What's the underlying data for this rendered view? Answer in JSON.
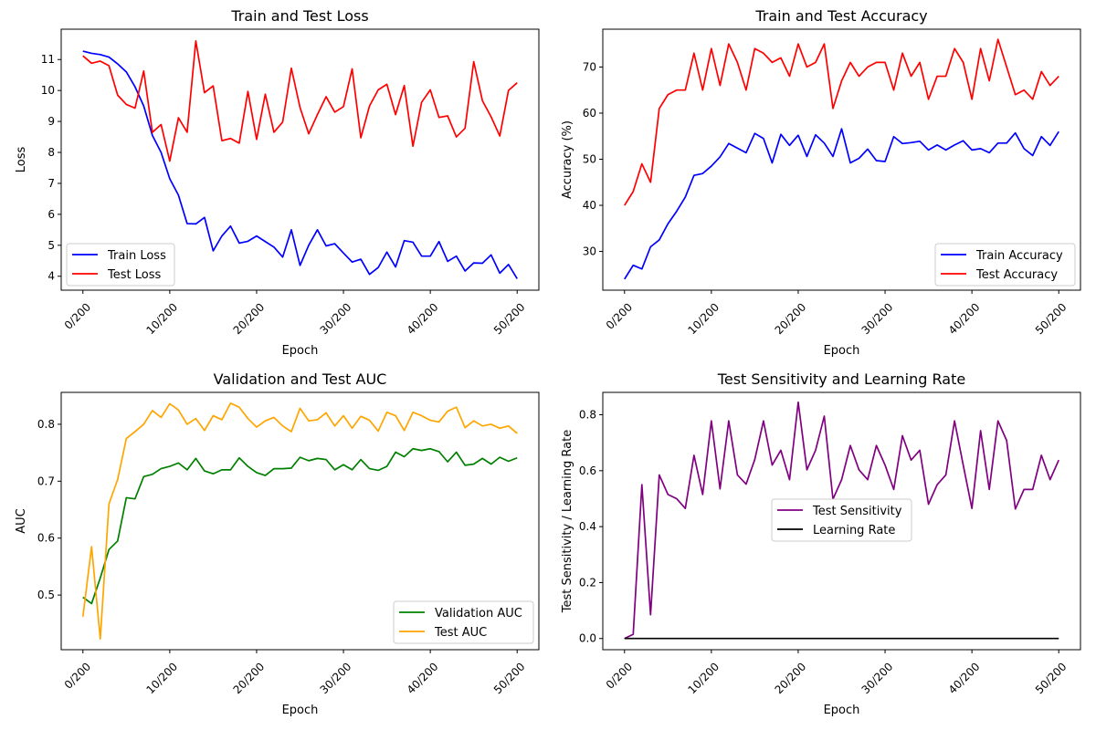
{
  "chart_data": [
    {
      "type": "line",
      "title": "Train and Test Loss",
      "xlabel": "Epoch",
      "ylabel": "Loss",
      "x": [
        0,
        1,
        2,
        3,
        4,
        5,
        6,
        7,
        8,
        9,
        10,
        11,
        12,
        13,
        14,
        15,
        16,
        17,
        18,
        19,
        20,
        21,
        22,
        23,
        24,
        25,
        26,
        27,
        28,
        29,
        30,
        31,
        32,
        33,
        34,
        35,
        36,
        37,
        38,
        39,
        40,
        41,
        42,
        43,
        44,
        45,
        46,
        47,
        48,
        49,
        50
      ],
      "xlim": [
        -2.5,
        52.5
      ],
      "ylim": [
        3.55,
        11.98
      ],
      "xticks": [
        0,
        10,
        20,
        30,
        40,
        50
      ],
      "xtick_labels": [
        "0/200",
        "10/200",
        "20/200",
        "30/200",
        "40/200",
        "50/200"
      ],
      "yticks": [
        4,
        5,
        6,
        7,
        8,
        9,
        10,
        11
      ],
      "ytick_labels": [
        "4",
        "5",
        "6",
        "7",
        "8",
        "9",
        "10",
        "11"
      ],
      "legend": "lower-left",
      "series": [
        {
          "name": "Train Loss",
          "color": "#0000ff",
          "values": [
            11.27,
            11.2,
            11.16,
            11.08,
            10.86,
            10.6,
            10.12,
            9.5,
            8.55,
            8.0,
            7.15,
            6.62,
            5.7,
            5.69,
            5.9,
            4.82,
            5.3,
            5.62,
            5.07,
            5.13,
            5.3,
            5.12,
            4.94,
            4.62,
            5.5,
            4.35,
            5.0,
            5.5,
            4.98,
            5.05,
            4.75,
            4.46,
            4.55,
            4.06,
            4.28,
            4.78,
            4.3,
            5.15,
            5.1,
            4.65,
            4.65,
            5.12,
            4.48,
            4.65,
            4.17,
            4.43,
            4.42,
            4.69,
            4.1,
            4.38,
            3.92
          ]
        },
        {
          "name": "Test Loss",
          "color": "#ff0000",
          "values": [
            11.12,
            10.88,
            10.95,
            10.8,
            9.85,
            9.55,
            9.43,
            10.63,
            8.65,
            8.9,
            7.72,
            9.12,
            8.65,
            11.6,
            9.93,
            10.15,
            8.38,
            8.45,
            8.3,
            9.97,
            8.42,
            9.88,
            8.65,
            8.98,
            10.72,
            9.45,
            8.6,
            9.22,
            9.8,
            9.3,
            9.48,
            10.7,
            8.47,
            9.5,
            10.02,
            10.2,
            9.22,
            10.16,
            8.2,
            9.62,
            10.02,
            9.13,
            9.18,
            8.5,
            8.78,
            10.93,
            9.67,
            9.15,
            8.53,
            10.0,
            10.25
          ]
        }
      ]
    },
    {
      "type": "line",
      "title": "Train and Test Accuracy",
      "xlabel": "Epoch",
      "ylabel": "Accuracy (%)",
      "x": [
        0,
        1,
        2,
        3,
        4,
        5,
        6,
        7,
        8,
        9,
        10,
        11,
        12,
        13,
        14,
        15,
        16,
        17,
        18,
        19,
        20,
        21,
        22,
        23,
        24,
        25,
        26,
        27,
        28,
        29,
        30,
        31,
        32,
        33,
        34,
        35,
        36,
        37,
        38,
        39,
        40,
        41,
        42,
        43,
        44,
        45,
        46,
        47,
        48,
        49,
        50
      ],
      "xlim": [
        -2.5,
        52.5
      ],
      "ylim": [
        21.6,
        78.2
      ],
      "xticks": [
        0,
        10,
        20,
        30,
        40,
        50
      ],
      "xtick_labels": [
        "0/200",
        "10/200",
        "20/200",
        "30/200",
        "40/200",
        "50/200"
      ],
      "yticks": [
        30,
        40,
        50,
        60,
        70
      ],
      "ytick_labels": [
        "30",
        "40",
        "50",
        "60",
        "70"
      ],
      "legend": "lower-right",
      "series": [
        {
          "name": "Train Accuracy",
          "color": "#0000ff",
          "values": [
            24.0,
            27.0,
            26.2,
            31.0,
            32.5,
            36.0,
            38.7,
            41.8,
            46.5,
            46.9,
            48.5,
            50.5,
            53.4,
            52.4,
            51.4,
            55.6,
            54.5,
            49.2,
            55.4,
            53.0,
            55.2,
            50.6,
            55.3,
            53.5,
            50.6,
            56.6,
            49.2,
            50.2,
            52.2,
            49.7,
            49.5,
            54.9,
            53.4,
            53.6,
            53.9,
            52.0,
            53.1,
            52.0,
            53.1,
            54.0,
            52.0,
            52.3,
            51.4,
            53.5,
            53.5,
            55.7,
            52.3,
            50.8,
            54.9,
            53.0,
            56.0
          ]
        },
        {
          "name": "Test Accuracy",
          "color": "#ff0000",
          "values": [
            40.0,
            43.0,
            49.0,
            45.0,
            61.0,
            64.0,
            65.0,
            65.0,
            73.0,
            65.0,
            74.0,
            66.0,
            75.0,
            71.0,
            65.0,
            74.0,
            73.0,
            71.0,
            72.0,
            68.0,
            75.0,
            70.0,
            71.0,
            75.0,
            61.0,
            67.0,
            71.0,
            68.0,
            70.0,
            71.0,
            71.0,
            65.0,
            73.0,
            68.0,
            71.0,
            63.0,
            68.0,
            68.0,
            74.0,
            71.0,
            63.0,
            74.0,
            67.0,
            76.0,
            70.0,
            64.0,
            65.0,
            63.0,
            69.0,
            66.0,
            68.0
          ]
        }
      ]
    },
    {
      "type": "line",
      "title": "Validation and Test AUC",
      "xlabel": "Epoch",
      "ylabel": "AUC",
      "x": [
        0,
        1,
        2,
        3,
        4,
        5,
        6,
        7,
        8,
        9,
        10,
        11,
        12,
        13,
        14,
        15,
        16,
        17,
        18,
        19,
        20,
        21,
        22,
        23,
        24,
        25,
        26,
        27,
        28,
        29,
        30,
        31,
        32,
        33,
        34,
        35,
        36,
        37,
        38,
        39,
        40,
        41,
        42,
        43,
        44,
        45,
        46,
        47,
        48,
        49,
        50
      ],
      "xlim": [
        -2.5,
        52.5
      ],
      "ylim": [
        0.404,
        0.856
      ],
      "xticks": [
        0,
        10,
        20,
        30,
        40,
        50
      ],
      "xtick_labels": [
        "0/200",
        "10/200",
        "20/200",
        "30/200",
        "40/200",
        "50/200"
      ],
      "yticks": [
        0.5,
        0.6,
        0.7,
        0.8
      ],
      "ytick_labels": [
        "0.5",
        "0.6",
        "0.7",
        "0.8"
      ],
      "legend": "lower-right",
      "series": [
        {
          "name": "Validation AUC",
          "color": "#008000",
          "values": [
            0.496,
            0.485,
            0.53,
            0.58,
            0.595,
            0.671,
            0.669,
            0.708,
            0.712,
            0.722,
            0.726,
            0.732,
            0.72,
            0.74,
            0.718,
            0.713,
            0.72,
            0.72,
            0.741,
            0.726,
            0.715,
            0.71,
            0.722,
            0.722,
            0.723,
            0.742,
            0.736,
            0.74,
            0.738,
            0.72,
            0.729,
            0.72,
            0.738,
            0.722,
            0.719,
            0.726,
            0.751,
            0.743,
            0.757,
            0.754,
            0.757,
            0.752,
            0.734,
            0.751,
            0.728,
            0.73,
            0.74,
            0.73,
            0.742,
            0.735,
            0.741
          ]
        },
        {
          "name": "Test AUC",
          "color": "#ffa500",
          "values": [
            0.462,
            0.585,
            0.423,
            0.66,
            0.703,
            0.775,
            0.787,
            0.8,
            0.824,
            0.812,
            0.836,
            0.825,
            0.8,
            0.81,
            0.789,
            0.815,
            0.808,
            0.837,
            0.83,
            0.81,
            0.795,
            0.806,
            0.812,
            0.797,
            0.787,
            0.828,
            0.806,
            0.808,
            0.82,
            0.797,
            0.815,
            0.793,
            0.814,
            0.807,
            0.788,
            0.821,
            0.815,
            0.789,
            0.821,
            0.815,
            0.807,
            0.804,
            0.823,
            0.83,
            0.794,
            0.806,
            0.797,
            0.8,
            0.793,
            0.797,
            0.784
          ]
        }
      ]
    },
    {
      "type": "line",
      "title": "Test Sensitivity and Learning Rate",
      "xlabel": "Epoch",
      "ylabel": "Test Sensitivity / Learning Rate",
      "x": [
        0,
        1,
        2,
        3,
        4,
        5,
        6,
        7,
        8,
        9,
        10,
        11,
        12,
        13,
        14,
        15,
        16,
        17,
        18,
        19,
        20,
        21,
        22,
        23,
        24,
        25,
        26,
        27,
        28,
        29,
        30,
        31,
        32,
        33,
        34,
        35,
        36,
        37,
        38,
        39,
        40,
        41,
        42,
        43,
        44,
        45,
        46,
        47,
        48,
        49,
        50
      ],
      "xlim": [
        -2.5,
        52.5
      ],
      "ylim": [
        -0.04,
        0.88
      ],
      "xticks": [
        0,
        10,
        20,
        30,
        40,
        50
      ],
      "xtick_labels": [
        "0/200",
        "10/200",
        "20/200",
        "30/200",
        "40/200",
        "50/200"
      ],
      "yticks": [
        0.0,
        0.2,
        0.4,
        0.6,
        0.8
      ],
      "ytick_labels": [
        "0.0",
        "0.2",
        "0.4",
        "0.6",
        "0.8"
      ],
      "legend": "center",
      "series": [
        {
          "name": "Test Sensitivity",
          "color": "#800080",
          "values": [
            0.0,
            0.015,
            0.55,
            0.085,
            0.585,
            0.515,
            0.5,
            0.465,
            0.655,
            0.515,
            0.778,
            0.535,
            0.778,
            0.585,
            0.552,
            0.64,
            0.778,
            0.62,
            0.673,
            0.568,
            0.845,
            0.603,
            0.673,
            0.795,
            0.498,
            0.568,
            0.69,
            0.603,
            0.568,
            0.69,
            0.62,
            0.533,
            0.725,
            0.638,
            0.673,
            0.48,
            0.55,
            0.585,
            0.778,
            0.62,
            0.465,
            0.743,
            0.533,
            0.778,
            0.708,
            0.463,
            0.533,
            0.533,
            0.655,
            0.568,
            0.638
          ]
        },
        {
          "name": "Learning Rate",
          "color": "#000000",
          "values": [
            0.0002,
            0.0002,
            0.0002,
            0.0002,
            0.0002,
            0.0002,
            0.0002,
            0.0002,
            0.0002,
            0.0002,
            0.0002,
            0.0002,
            0.0002,
            0.0002,
            0.0002,
            0.0002,
            0.0002,
            0.0002,
            0.0002,
            0.0002,
            0.0002,
            0.0002,
            0.0002,
            0.0002,
            0.0002,
            0.0002,
            0.0002,
            0.0002,
            0.0002,
            0.0002,
            0.0002,
            0.0002,
            0.0002,
            0.0002,
            0.0002,
            0.0002,
            0.0002,
            0.0002,
            0.0002,
            0.0002,
            0.0002,
            0.0002,
            0.0002,
            0.0002,
            0.0002,
            0.0002,
            0.0002,
            0.0002,
            0.0002,
            0.0002,
            0.0002
          ]
        }
      ]
    }
  ]
}
